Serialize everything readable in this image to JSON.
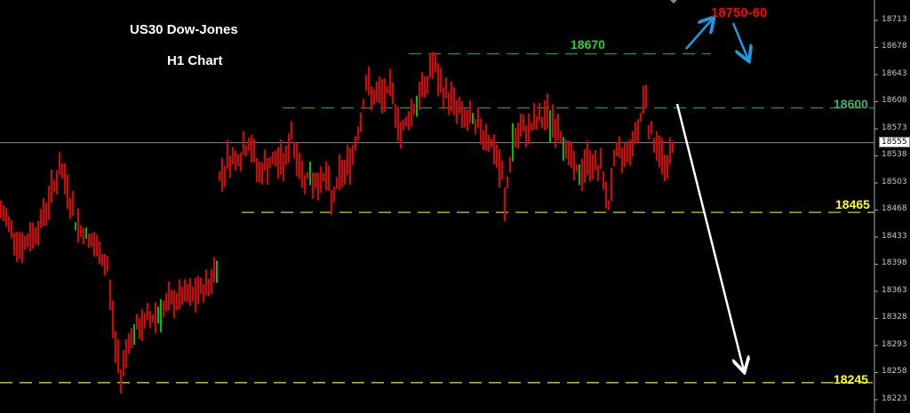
{
  "chart_data": {
    "type": "ohlc-bar",
    "title": "US30 Dow-Jones",
    "subtitle": "H1 Chart",
    "ylim": [
      18210,
      18730
    ],
    "y_ticks": [
      18713,
      18678,
      18643,
      18608,
      18573,
      18538,
      18503,
      18468,
      18433,
      18398,
      18363,
      18328,
      18293,
      18258,
      18223
    ],
    "current_price": 18555,
    "price_path": [
      [
        0,
        18464
      ],
      [
        3,
        18452
      ],
      [
        8,
        18418
      ],
      [
        15,
        18452
      ],
      [
        22,
        18521
      ],
      [
        25,
        18498
      ],
      [
        28,
        18452
      ],
      [
        33,
        18430
      ],
      [
        40,
        18395
      ],
      [
        43,
        18292
      ],
      [
        45,
        18257
      ],
      [
        48,
        18303
      ],
      [
        52,
        18315
      ],
      [
        55,
        18326
      ],
      [
        60,
        18338
      ],
      [
        67,
        18355
      ],
      [
        72,
        18355
      ],
      [
        78,
        18372
      ],
      [
        81,
        18395
      ],
      [
        82,
        18510
      ],
      [
        85,
        18533
      ],
      [
        90,
        18539
      ],
      [
        93,
        18556
      ],
      [
        97,
        18516
      ],
      [
        100,
        18527
      ],
      [
        107,
        18533
      ],
      [
        109,
        18567
      ],
      [
        112,
        18521
      ],
      [
        117,
        18504
      ],
      [
        122,
        18510
      ],
      [
        124,
        18481
      ],
      [
        127,
        18510
      ],
      [
        132,
        18539
      ],
      [
        135,
        18590
      ],
      [
        137,
        18630
      ],
      [
        140,
        18613
      ],
      [
        147,
        18619
      ],
      [
        150,
        18567
      ],
      [
        153,
        18590
      ],
      [
        157,
        18613
      ],
      [
        160,
        18636
      ],
      [
        162,
        18659
      ],
      [
        165,
        18625
      ],
      [
        170,
        18607
      ],
      [
        173,
        18590
      ],
      [
        177,
        18579
      ],
      [
        182,
        18567
      ],
      [
        185,
        18544
      ],
      [
        188,
        18510
      ],
      [
        189,
        18475
      ],
      [
        192,
        18556
      ],
      [
        197,
        18573
      ],
      [
        200,
        18579
      ],
      [
        205,
        18590
      ],
      [
        210,
        18567
      ],
      [
        213,
        18539
      ],
      [
        217,
        18510
      ],
      [
        220,
        18533
      ],
      [
        225,
        18521
      ],
      [
        228,
        18475
      ],
      [
        230,
        18533
      ],
      [
        233,
        18539
      ],
      [
        237,
        18556
      ],
      [
        240,
        18590
      ],
      [
        242,
        18625
      ],
      [
        243,
        18573
      ],
      [
        247,
        18544
      ],
      [
        250,
        18521
      ],
      [
        252,
        18556
      ]
    ],
    "levels": [
      {
        "label": "18670",
        "value": 18670,
        "color": "#1aa01a",
        "style": "dashed"
      },
      {
        "label": "18600",
        "value": 18600,
        "color": "#1aa01a",
        "style": "dashed"
      },
      {
        "label": "18465",
        "value": 18465,
        "color": "#d4d400",
        "style": "dashed"
      },
      {
        "label": "18245",
        "value": 18245,
        "color": "#d4d400",
        "style": "dashed"
      }
    ],
    "target_annotation": {
      "label": "18750-60",
      "color": "#ff0000"
    },
    "colors": {
      "bear_bar": "#e00000",
      "bull_bar": "#00c000",
      "background": "#000000",
      "arrow_blue": "#1e9be0",
      "arrow_white": "#ffffff",
      "level_18600_label": "#3cb371",
      "level_18670_label": "#2ecc2e",
      "level_yellow_label": "#ffff00"
    }
  }
}
